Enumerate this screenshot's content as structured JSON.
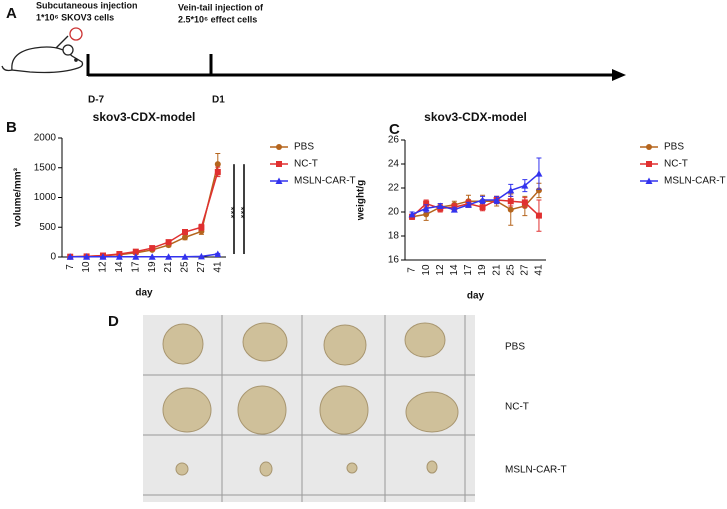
{
  "panel_a": {
    "label": "A",
    "step1": [
      "Subcutaneous injection",
      "1*10⁶ SKOV3 cells"
    ],
    "step2": [
      "Vein-tail injection of",
      "2.5*10⁶ effect cells"
    ],
    "timepoints": [
      "D-7",
      "D1"
    ]
  },
  "chart_data": [
    {
      "type": "line",
      "panel": "B",
      "title": "skov3-CDX-model",
      "x_label": "day",
      "y_label": "volume/mm³",
      "categories": [
        "7",
        "10",
        "12",
        "14",
        "17",
        "19",
        "21",
        "25",
        "27",
        "41"
      ],
      "ylim": [
        0,
        2000
      ],
      "yticks": [
        0,
        500,
        1000,
        1500,
        2000
      ],
      "series": [
        {
          "name": "PBS",
          "color": "#b5651d",
          "marker": "circle",
          "values": [
            5,
            10,
            20,
            40,
            70,
            120,
            200,
            330,
            430,
            1560
          ],
          "errors": [
            2,
            3,
            5,
            8,
            15,
            20,
            30,
            40,
            50,
            180
          ]
        },
        {
          "name": "NC-T",
          "color": "#e03030",
          "marker": "square",
          "values": [
            5,
            10,
            25,
            50,
            90,
            150,
            250,
            420,
            500,
            1430
          ],
          "errors": [
            2,
            3,
            5,
            8,
            15,
            20,
            30,
            40,
            50,
            80
          ]
        },
        {
          "name": "MSLN-CAR-T",
          "color": "#3333ee",
          "marker": "triangle",
          "values": [
            5,
            5,
            5,
            5,
            5,
            5,
            5,
            5,
            10,
            50
          ],
          "errors": [
            1,
            1,
            1,
            1,
            1,
            1,
            1,
            1,
            2,
            10
          ]
        }
      ],
      "annotations": [
        "***",
        "***"
      ]
    },
    {
      "type": "line",
      "panel": "C",
      "title": "skov3-CDX-model",
      "x_label": "day",
      "y_label": "weight/g",
      "categories": [
        "7",
        "10",
        "12",
        "14",
        "17",
        "19",
        "21",
        "25",
        "27",
        "41"
      ],
      "ylim": [
        16,
        26
      ],
      "yticks": [
        16,
        18,
        20,
        22,
        24,
        26
      ],
      "series": [
        {
          "name": "PBS",
          "color": "#b5651d",
          "marker": "circle",
          "values": [
            19.6,
            19.8,
            20.4,
            20.6,
            20.9,
            20.9,
            20.9,
            20.2,
            20.5,
            21.8
          ],
          "errors": [
            0.2,
            0.5,
            0.3,
            0.3,
            0.5,
            0.5,
            0.4,
            1.3,
            0.8,
            0.6
          ]
        },
        {
          "name": "NC-T",
          "color": "#e03030",
          "marker": "square",
          "values": [
            19.6,
            20.7,
            20.3,
            20.4,
            20.7,
            20.4,
            21.0,
            20.9,
            20.8,
            19.7
          ],
          "errors": [
            0.2,
            0.3,
            0.3,
            0.3,
            0.3,
            0.3,
            0.3,
            0.4,
            0.4,
            1.3
          ]
        },
        {
          "name": "MSLN-CAR-T",
          "color": "#3333ee",
          "marker": "triangle",
          "values": [
            19.8,
            20.3,
            20.5,
            20.2,
            20.6,
            21.0,
            21.0,
            21.8,
            22.2,
            23.2
          ],
          "errors": [
            0.2,
            0.3,
            0.2,
            0.2,
            0.2,
            0.3,
            0.3,
            0.5,
            0.5,
            1.3
          ]
        }
      ]
    }
  ],
  "panel_d": {
    "label": "D",
    "rows": [
      "PBS",
      "NC-T",
      "MSLN-CAR-T"
    ]
  }
}
